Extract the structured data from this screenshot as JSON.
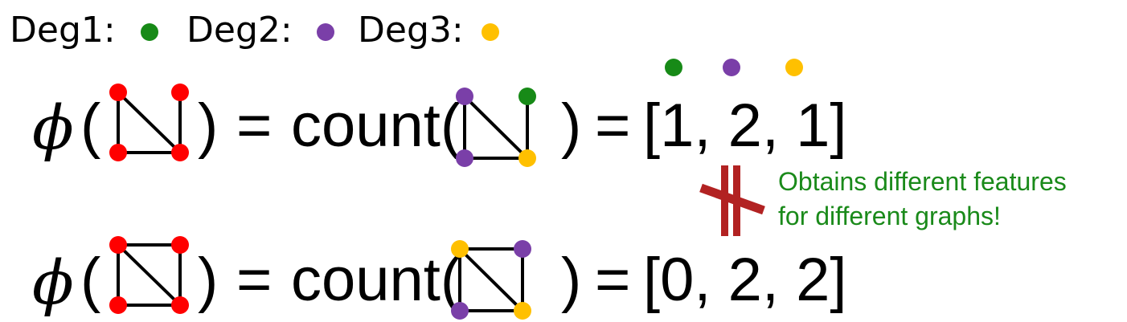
{
  "colors": {
    "deg1": "#178a17",
    "deg2": "#7a3fa8",
    "deg3": "#ffc000",
    "node_plain": "#ff0000",
    "edge": "#000000",
    "not_equal": "#b22222",
    "note": "#1a8a1a"
  },
  "legend": {
    "deg1_label": "Deg1:",
    "deg2_label": "Deg2:",
    "deg3_label": "Deg3:"
  },
  "rows": [
    {
      "phi": "ϕ",
      "lhs_open": "(",
      "lhs_close": ")",
      "eq1": "=",
      "count_label": "count(",
      "count_close": ")",
      "eq2": "=",
      "result": "[1, 2, 1]",
      "graph_edges": [
        "top-left/bottom-left",
        "bottom-left/bottom-right",
        "bottom-right/top-right",
        "top-left/bottom-right"
      ],
      "node_degree_colors": {
        "top-left": "deg2",
        "top-right": "deg1",
        "bottom-left": "deg2",
        "bottom-right": "deg3"
      }
    },
    {
      "phi": "ϕ",
      "lhs_open": "(",
      "lhs_close": ")",
      "eq1": "=",
      "count_label": "count(",
      "count_close": ")",
      "eq2": "=",
      "result": "[0, 2, 2]",
      "graph_edges": [
        "top-left/top-right",
        "top-left/bottom-left",
        "bottom-left/bottom-right",
        "bottom-right/top-right",
        "top-left/bottom-right"
      ],
      "node_degree_colors": {
        "top-left": "deg3",
        "top-right": "deg2",
        "bottom-left": "deg2",
        "bottom-right": "deg3"
      }
    }
  ],
  "result_header_dots": [
    "deg1",
    "deg2",
    "deg3"
  ],
  "note": {
    "line1": "Obtains different features",
    "line2": "for different graphs!"
  }
}
